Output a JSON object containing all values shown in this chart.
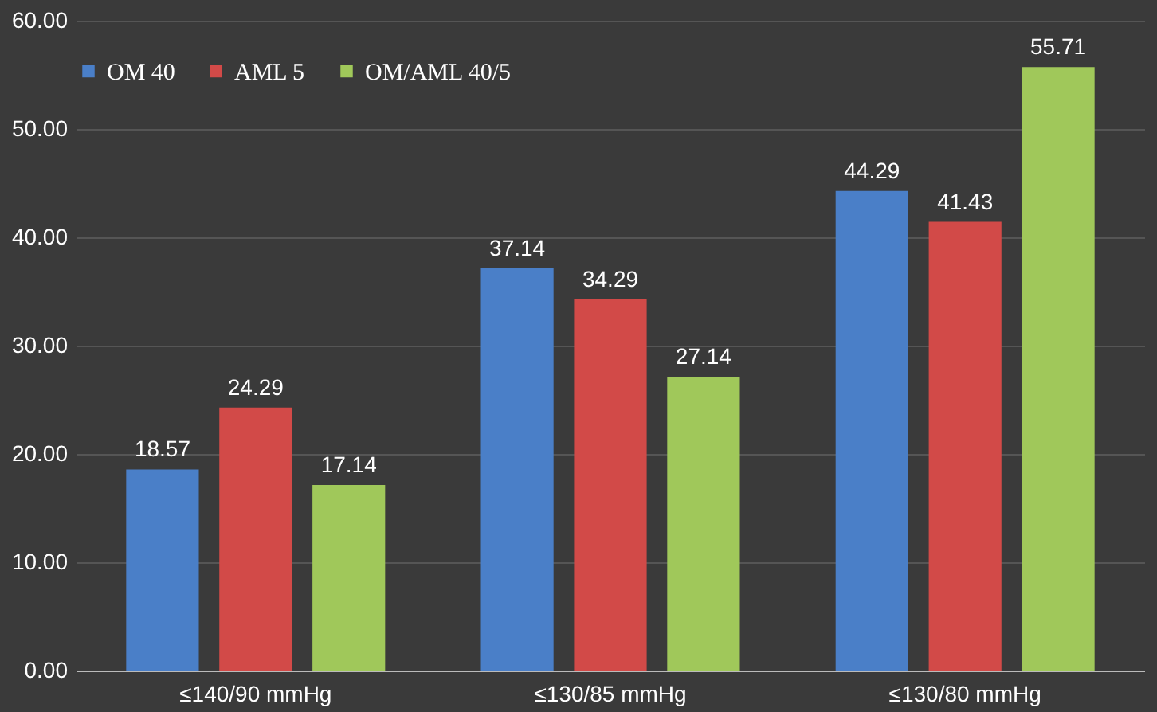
{
  "chart_data": {
    "type": "bar",
    "categories": [
      "≤140/90 mmHg",
      "≤130/85 mmHg",
      "≤130/80 mmHg"
    ],
    "series": [
      {
        "name": "OM 40",
        "color": "#4a7fc8",
        "values": [
          18.57,
          37.14,
          44.29
        ]
      },
      {
        "name": "AML 5",
        "color": "#d24a48",
        "values": [
          24.29,
          34.29,
          41.43
        ]
      },
      {
        "name": "OM/AML 40/5",
        "color": "#a0c85a",
        "values": [
          17.14,
          27.14,
          55.71
        ]
      }
    ],
    "ylim": [
      0,
      60
    ],
    "yticks": [
      {
        "value": 0,
        "label": "0.00"
      },
      {
        "value": 10,
        "label": "10.00"
      },
      {
        "value": 20,
        "label": "20.00"
      },
      {
        "value": 30,
        "label": "30.00"
      },
      {
        "value": 40,
        "label": "40.00"
      },
      {
        "value": 50,
        "label": "50.00"
      },
      {
        "value": 60,
        "label": "60.00"
      }
    ],
    "grid": "y",
    "legend": "top",
    "data_labels": true
  }
}
